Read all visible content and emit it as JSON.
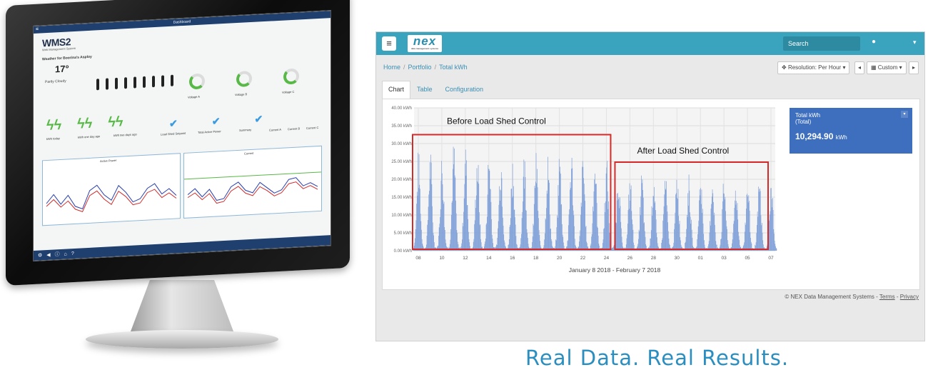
{
  "monitor": {
    "topbar_title": "Dashboard",
    "logo": "WMS2",
    "logo_sub": "Web Management System",
    "weather_title": "Weather for Boorina's Asploy",
    "temperature": "17°",
    "condition": "Partly Cloudy",
    "kwh_today": "kWh today",
    "kwh_one_day": "kWh one day ago",
    "kwh_two_days": "kWh two days ago",
    "load_shed": "Load Shed Setpoint",
    "total_active": "Total Active Power",
    "summary": "Summary",
    "current_a": "Current A",
    "current_b": "Current B",
    "current_c": "Current C",
    "voltage_a": "Voltage A",
    "voltage_b": "Voltage B",
    "voltage_c": "Voltage C",
    "chart1_title": "Active Power",
    "chart2_title": "Current"
  },
  "app": {
    "brand": "nex",
    "brand_sub": "data management systems",
    "search_label": "Search",
    "breadcrumb": [
      "Home",
      "Portfolio",
      "Total kWh"
    ],
    "resolution_label": "Resolution: Per Hour",
    "custom_label": "Custom",
    "tabs": [
      "Chart",
      "Table",
      "Configuration"
    ],
    "active_tab": "Chart",
    "card_title_1": "Total kWh",
    "card_title_2": "(Total)",
    "card_value": "10,294.90",
    "card_unit": "kWh",
    "footer_text": "© NEX Data Management Systems - ",
    "footer_terms": "Terms",
    "footer_sep": " - ",
    "footer_privacy": "Privacy"
  },
  "tagline": "Real Data. Real Results.",
  "colors": {
    "topbar": "#3aa3bd",
    "bar_fill": "#7e9fd8",
    "highlight_box": "#d42a2a",
    "card": "#3e6fbe",
    "accent_green": "#58b947"
  },
  "chart_data": {
    "type": "bar",
    "xlabel": "January 8 2018 - February 7 2018",
    "ylabel": "",
    "y_ticks": [
      "0.00 kWh",
      "5.00 kWh",
      "10.00 kWh",
      "15.00 kWh",
      "20.00 kWh",
      "25.00 kWh",
      "30.00 kWh",
      "35.00 kWh",
      "40.00 kWh"
    ],
    "ylim": [
      0,
      40
    ],
    "x_ticks": [
      "08",
      "10",
      "12",
      "14",
      "16",
      "18",
      "20",
      "22",
      "24",
      "26",
      "28",
      "30",
      "01",
      "03",
      "05",
      "07"
    ],
    "series_note": "hourly kWh, daily peaks",
    "daily_peaks": [
      28.5,
      29.0,
      28.0,
      31.0,
      30.5,
      28.5,
      30.0,
      29.0,
      27.5,
      28.5,
      28.0,
      27.5,
      28.5,
      29.0,
      28.0,
      27.5,
      26.0,
      24.5,
      22.0,
      22.5,
      23.0,
      22.5,
      22.5,
      21.5,
      22.5,
      22.5,
      21.5,
      20.5,
      21.5,
      21.0,
      22.0
    ],
    "annotations": [
      {
        "label": "Before Load Shed Control",
        "x_range": [
          "08",
          "24"
        ]
      },
      {
        "label": "After Load Shed Control",
        "x_range": [
          "24",
          "07"
        ]
      }
    ],
    "grid": true
  }
}
